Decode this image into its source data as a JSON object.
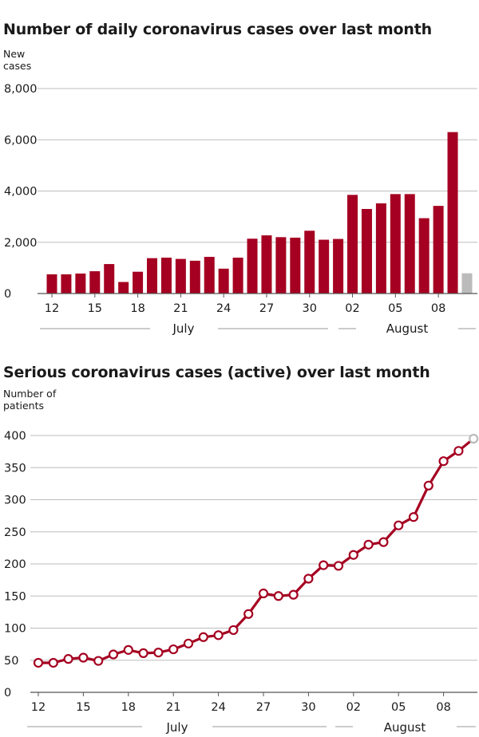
{
  "chart_data": [
    {
      "type": "bar",
      "title": "Number of daily coronavirus cases over last month",
      "ylabel": [
        "New",
        "cases"
      ],
      "ylim": [
        0,
        8000
      ],
      "yticks": [
        0,
        2000,
        4000,
        6000,
        8000
      ],
      "ytick_labels": [
        "0",
        "2,000",
        "4,000",
        "6,000",
        "8,000"
      ],
      "categories": [
        "12",
        "13",
        "14",
        "15",
        "16",
        "17",
        "18",
        "19",
        "20",
        "21",
        "22",
        "23",
        "24",
        "25",
        "26",
        "27",
        "28",
        "29",
        "30",
        "31",
        "01",
        "02",
        "03",
        "04",
        "05",
        "06",
        "07",
        "08",
        "09",
        "10"
      ],
      "xtick_labels": [
        "12",
        "15",
        "18",
        "21",
        "24",
        "27",
        "30",
        "02",
        "05",
        "08"
      ],
      "months": [
        "July",
        "August"
      ],
      "values": [
        750,
        750,
        780,
        870,
        1150,
        450,
        850,
        1380,
        1400,
        1350,
        1280,
        1430,
        970,
        1400,
        2140,
        2270,
        2200,
        2180,
        2450,
        2100,
        2130,
        3850,
        3300,
        3520,
        3880,
        3880,
        2940,
        3420,
        6300,
        790
      ],
      "colors": {
        "bar": "#a50021",
        "partial": "#bbbbbb"
      }
    },
    {
      "type": "line",
      "title": "Serious coronavirus cases (active) over last month",
      "ylabel": [
        "Number of",
        "patients"
      ],
      "ylim": [
        0,
        400
      ],
      "yticks": [
        0,
        50,
        100,
        150,
        200,
        250,
        300,
        350,
        400
      ],
      "ytick_labels": [
        "0",
        "50",
        "100",
        "150",
        "200",
        "250",
        "300",
        "350",
        "400"
      ],
      "categories": [
        "12",
        "13",
        "14",
        "15",
        "16",
        "17",
        "18",
        "19",
        "20",
        "21",
        "22",
        "23",
        "24",
        "25",
        "26",
        "27",
        "28",
        "29",
        "30",
        "31",
        "01",
        "02",
        "03",
        "04",
        "05",
        "06",
        "07",
        "08",
        "09",
        "10"
      ],
      "xtick_labels": [
        "12",
        "15",
        "18",
        "21",
        "24",
        "27",
        "30",
        "02",
        "05",
        "08"
      ],
      "months": [
        "July",
        "August"
      ],
      "values": [
        46,
        46,
        52,
        54,
        49,
        59,
        66,
        61,
        62,
        67,
        76,
        86,
        89,
        97,
        122,
        154,
        150,
        152,
        177,
        198,
        197,
        214,
        230,
        234,
        260,
        273,
        322,
        360,
        376,
        395
      ],
      "colors": {
        "line": "#a50021",
        "partial": "#bbbbbb"
      }
    }
  ]
}
